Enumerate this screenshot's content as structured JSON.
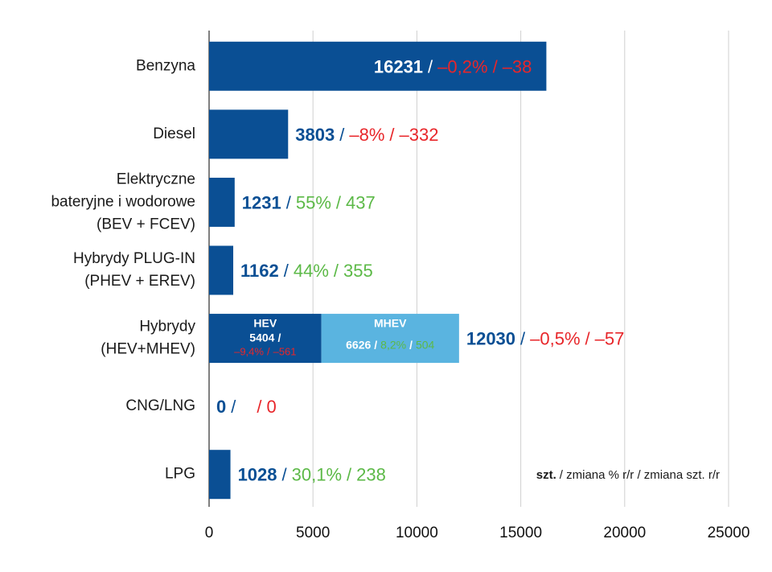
{
  "chart_data": {
    "type": "bar",
    "orientation": "horizontal",
    "categories": [
      [
        "Benzyna"
      ],
      [
        "Diesel"
      ],
      [
        "Elektryczne",
        "bateryjne i wodorowe",
        "(BEV + FCEV)"
      ],
      [
        "Hybrydy PLUG-IN",
        "(PHEV + EREV)"
      ],
      [
        "Hybrydy",
        "(HEV+MHEV)"
      ],
      [
        "CNG/LNG"
      ],
      [
        "LPG"
      ]
    ],
    "values": [
      16231,
      3803,
      1231,
      1162,
      12030,
      0,
      1028
    ],
    "color": "#0a4f94",
    "pct_values": [
      -0.2,
      -8,
      55,
      44,
      -0.5,
      null,
      30.1
    ],
    "pct_labels": [
      "–0,2%",
      "–8%",
      "55%",
      "44%",
      "–0,5%",
      null,
      "30,1%"
    ],
    "change_values": [
      -38,
      -332,
      437,
      355,
      -57,
      0,
      238
    ],
    "change_labels": [
      "–38",
      "–332",
      "437",
      "355",
      "–57",
      "0",
      "238"
    ],
    "segments": [
      null,
      null,
      null,
      null,
      [
        {
          "name": "HEV",
          "value": 5404,
          "color": "#0a4f94",
          "pct_value": -9.4,
          "pct_label": "–9,4%",
          "change_value": -561,
          "change_label": "–561"
        },
        {
          "name": "MHEV",
          "value": 6626,
          "color": "#5ab4e0",
          "pct_value": 8.2,
          "pct_label": "8,2%",
          "change_value": 504,
          "change_label": "504"
        }
      ],
      null,
      null
    ],
    "separator": "/",
    "positive_color": "#5cb947",
    "negative_color": "#e8262a",
    "unit_note": {
      "bold": "szt.",
      "rest": "/ zmiana % r/r / zmiana szt. r/r"
    },
    "xlim": [
      0,
      25000
    ],
    "xticks": [
      0,
      5000,
      10000,
      15000,
      20000,
      25000
    ],
    "grid": true
  }
}
